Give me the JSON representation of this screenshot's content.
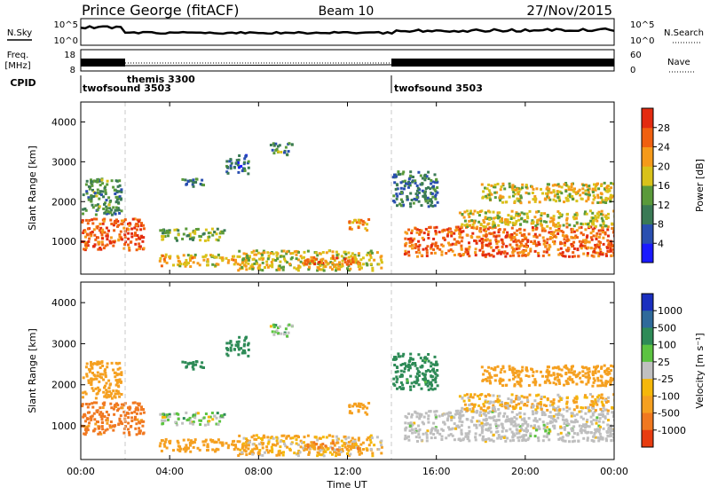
{
  "header": {
    "station": "Prince George (fitACF)",
    "beam": "Beam 10",
    "date": "27/Nov/2015"
  },
  "noise_panel": {
    "left_label": "N.Sky",
    "left_ticks": [
      "10^5",
      "10^0"
    ],
    "right_label": "N.Search",
    "right_ticks": [
      "10^5",
      "10^0"
    ]
  },
  "freq_panel": {
    "left_label_1": "Freq.",
    "left_label_2": "[MHz]",
    "left_ticks": [
      "18",
      "8"
    ],
    "right_label": "Nave",
    "right_ticks": [
      "60",
      "0"
    ]
  },
  "cpid": {
    "label": "CPID",
    "segments": [
      {
        "name": "twofsound 3503",
        "start_h": 0
      },
      {
        "name": "themis 3300",
        "start_h": 2
      },
      {
        "name": "twofsound 3503",
        "start_h": 14
      }
    ]
  },
  "x_axis": {
    "title": "Time UT",
    "ticks": [
      "00:00",
      "04:00",
      "08:00",
      "12:00",
      "16:00",
      "20:00",
      "00:00"
    ]
  },
  "power_panel": {
    "ylabel": "Slant Range [km]",
    "yticks": [
      "1000",
      "2000",
      "3000",
      "4000"
    ]
  },
  "velocity_panel": {
    "ylabel": "Slant Range [km]",
    "yticks": [
      "1000",
      "2000",
      "3000",
      "4000"
    ]
  },
  "power_colorbar": {
    "label": "Power [dB]",
    "ticks": [
      "4",
      "8",
      "12",
      "16",
      "20",
      "24",
      "28"
    ],
    "colors": [
      "#1a1aff",
      "#2a4fb0",
      "#3a7a55",
      "#5a9a3a",
      "#d9c21a",
      "#f59a1a",
      "#f06010",
      "#e32b10"
    ]
  },
  "velocity_colorbar": {
    "label": "Velocity [m s⁻¹]",
    "ticks": [
      "1000",
      "500",
      "100",
      "25",
      "-25",
      "-100",
      "-500",
      "-1000"
    ],
    "colors": [
      "#1a2fbf",
      "#2f6a9a",
      "#2e8b57",
      "#5cc341",
      "#c0c0c0",
      "#f5b70a",
      "#f5a020",
      "#f07820",
      "#e83c10"
    ]
  },
  "chart_data": {
    "type": "heatmap",
    "x_range_hours": [
      0,
      24
    ],
    "y_range_km": [
      180,
      4500
    ],
    "ground_scatter_color": "#bebebe",
    "echo_regions": [
      {
        "t0": 0.0,
        "t1": 2.8,
        "r0": 800,
        "r1": 1600,
        "power": 27,
        "velocity": -350
      },
      {
        "t0": 0.0,
        "t1": 1.8,
        "r0": 1700,
        "r1": 2600,
        "power": 12,
        "velocity": -150
      },
      {
        "t0": 3.5,
        "t1": 6.5,
        "r0": 1050,
        "r1": 1350,
        "power": 14,
        "velocity": 20
      },
      {
        "t0": 3.5,
        "t1": 7.5,
        "r0": 400,
        "r1": 700,
        "power": 20,
        "velocity": -200
      },
      {
        "t0": 7.0,
        "t1": 13.5,
        "r0": 300,
        "r1": 800,
        "power": 18,
        "velocity": -60
      },
      {
        "t0": 10.0,
        "t1": 12.5,
        "r0": 450,
        "r1": 650,
        "power": 25,
        "velocity": -300
      },
      {
        "t0": 12.0,
        "t1": 13.0,
        "r0": 1300,
        "r1": 1600,
        "power": 22,
        "velocity": -200
      },
      {
        "t0": 14.5,
        "t1": 24.0,
        "r0": 650,
        "r1": 1400,
        "power": 26,
        "velocity": 0
      },
      {
        "t0": 17.0,
        "t1": 24.0,
        "r0": 1400,
        "r1": 1800,
        "power": 18,
        "velocity": -50
      },
      {
        "t0": 18.0,
        "t1": 24.0,
        "r0": 2000,
        "r1": 2500,
        "power": 19,
        "velocity": -150
      },
      {
        "t0": 4.5,
        "t1": 5.5,
        "r0": 2400,
        "r1": 2600,
        "power": 10,
        "velocity": 150
      },
      {
        "t0": 6.5,
        "t1": 7.5,
        "r0": 2700,
        "r1": 3200,
        "power": 8,
        "velocity": 150
      },
      {
        "t0": 8.5,
        "t1": 9.5,
        "r0": 3200,
        "r1": 3500,
        "power": 12,
        "velocity": 20
      },
      {
        "t0": 14.0,
        "t1": 16.0,
        "r0": 1900,
        "r1": 2800,
        "power": 10,
        "velocity": 120
      }
    ]
  }
}
